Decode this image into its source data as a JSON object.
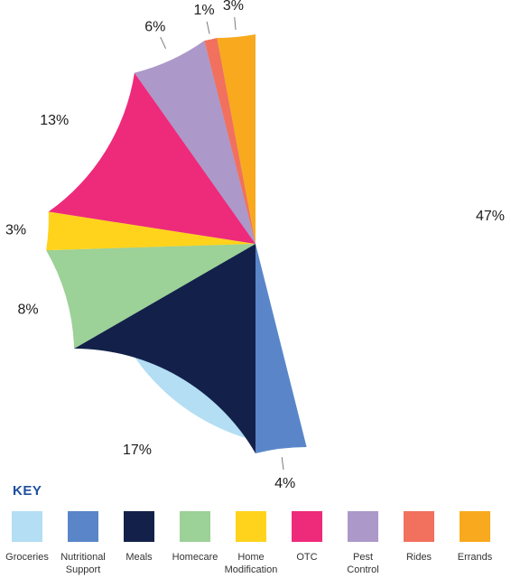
{
  "chart_data": {
    "type": "pie",
    "categories": [
      "Groceries",
      "Nutritional\nSupport",
      "Meals",
      "Homecare",
      "Home\nModification",
      "OTC",
      "Pest\nControl",
      "Rides",
      "Errands"
    ],
    "values": [
      47,
      4,
      17,
      8,
      3,
      13,
      6,
      1,
      3
    ],
    "labels": [
      "47%",
      "4%",
      "17%",
      "8%",
      "3%",
      "13%",
      "6%",
      "1%",
      "3%"
    ],
    "colors": [
      "#b3def4",
      "#5a86c9",
      "#13214a",
      "#9cd197",
      "#ffd31c",
      "#ee2a7b",
      "#ac98c9",
      "#f2705e",
      "#f8a91d"
    ],
    "title": "",
    "legend_title": "KEY",
    "legend_placement": "bottom"
  }
}
